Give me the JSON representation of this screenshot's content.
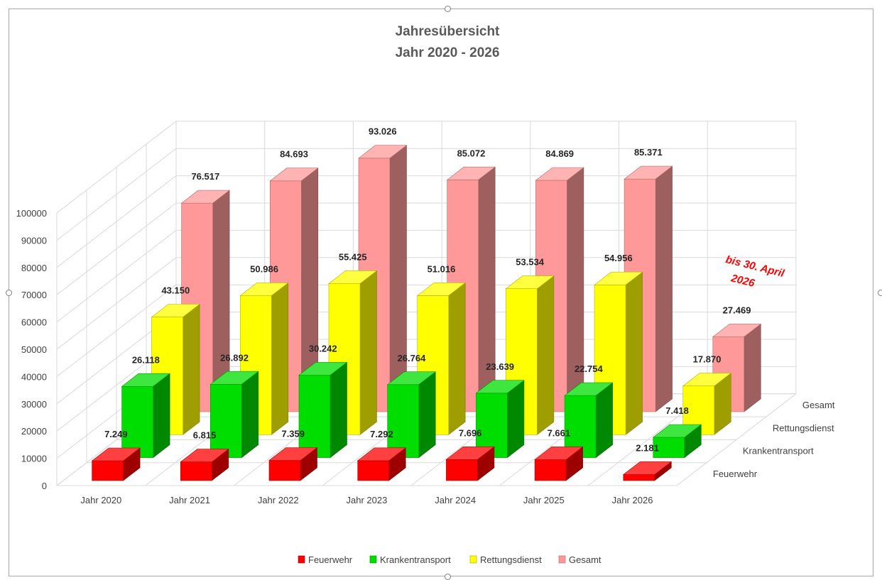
{
  "chart_data": {
    "type": "bar",
    "title": "Jahresübersicht",
    "subtitle": "Jahr 2020 - 2026",
    "categories": [
      "Jahr 2020",
      "Jahr 2021",
      "Jahr 2022",
      "Jahr 2023",
      "Jahr 2024",
      "Jahr 2025",
      "Jahr 2026"
    ],
    "series": [
      {
        "name": "Feuerwehr",
        "color": "#ff0000",
        "values": [
          7249,
          6815,
          7359,
          7292,
          7696,
          7661,
          2181
        ],
        "labels": [
          "7.249",
          "6.815",
          "7.359",
          "7.292",
          "7.696",
          "7.661",
          "2.181"
        ]
      },
      {
        "name": "Krankentransport",
        "color": "#00dd00",
        "values": [
          26118,
          26892,
          30242,
          26764,
          23639,
          22754,
          7418
        ],
        "labels": [
          "26.118",
          "26.892",
          "30.242",
          "26.764",
          "23.639",
          "22.754",
          "7.418"
        ]
      },
      {
        "name": "Rettungsdienst",
        "color": "#ffff00",
        "values": [
          43150,
          50986,
          55425,
          51016,
          53534,
          54956,
          17870
        ],
        "labels": [
          "43.150",
          "50.986",
          "55.425",
          "51.016",
          "53.534",
          "54.956",
          "17.870"
        ]
      },
      {
        "name": "Gesamt",
        "color": "#ff9999",
        "values": [
          76517,
          84693,
          93026,
          85072,
          84869,
          85371,
          27469
        ],
        "labels": [
          "76.517",
          "84.693",
          "93.026",
          "85.072",
          "84.869",
          "85.371",
          "27.469"
        ]
      }
    ],
    "y_ticks": [
      "0",
      "10000",
      "20000",
      "30000",
      "40000",
      "50000",
      "60000",
      "70000",
      "80000",
      "90000",
      "100000"
    ],
    "ylim": [
      0,
      100000
    ],
    "annotation": [
      "bis 30. April",
      "2026"
    ],
    "grid": true,
    "legend_position": "bottom"
  }
}
